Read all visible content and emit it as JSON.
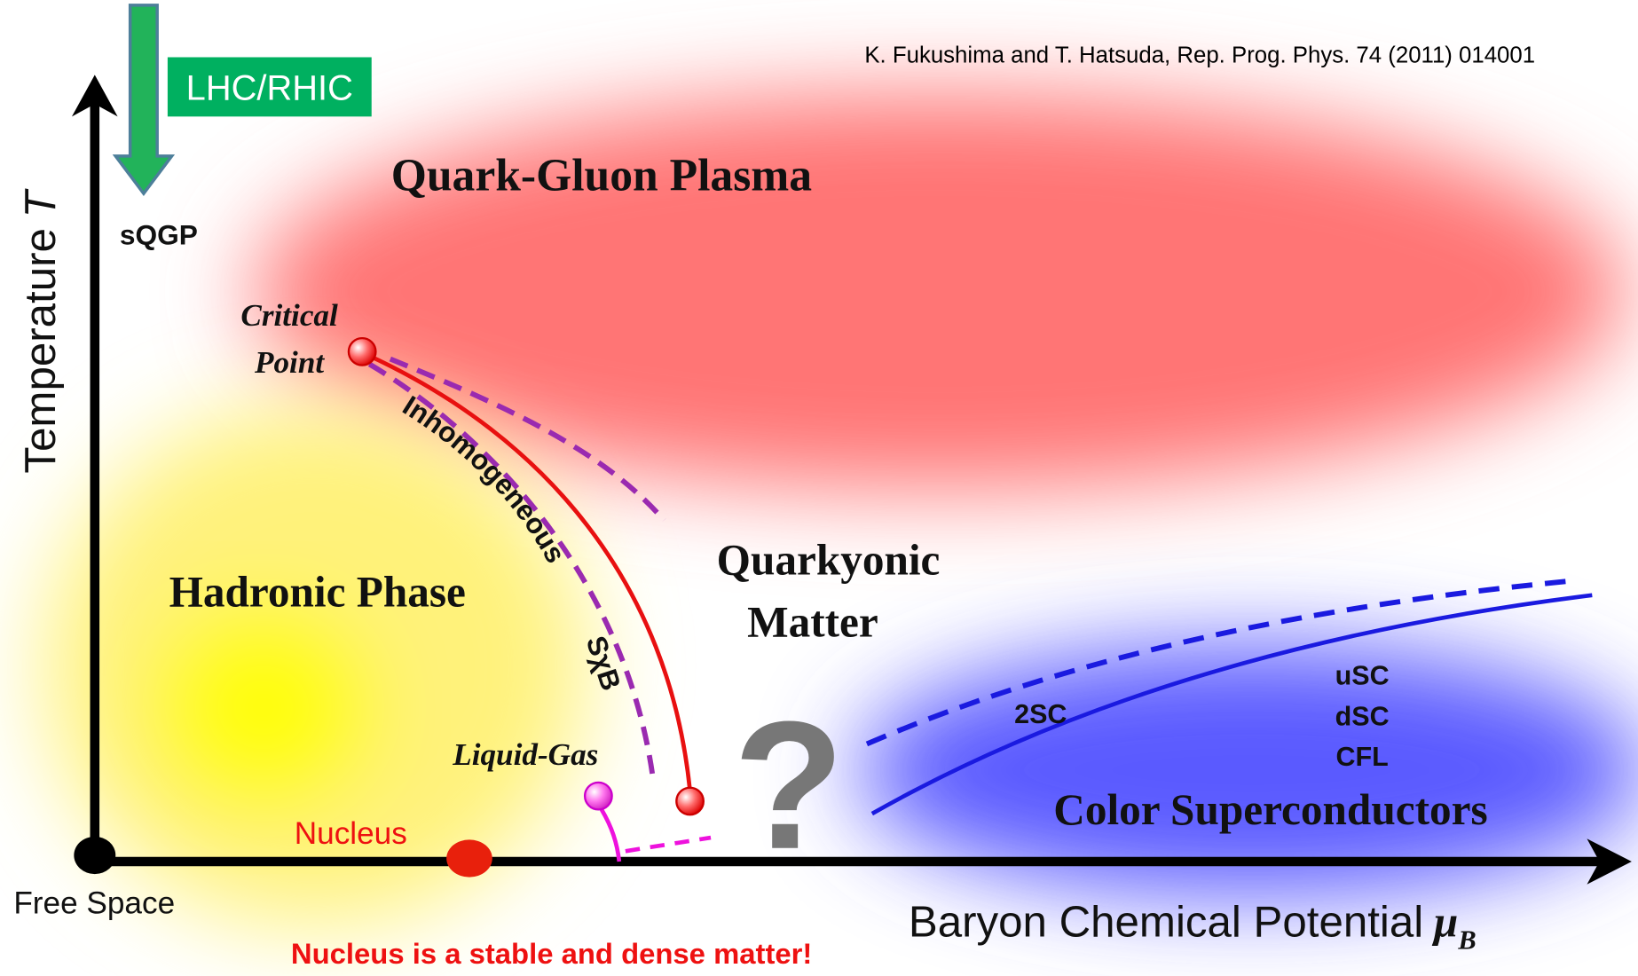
{
  "citation": "K. Fukushima and T. Hatsuda, Rep. Prog. Phys. 74 (2011) 014001",
  "arrow_label": "LHC/RHIC",
  "axes": {
    "y_label": "Temperature",
    "y_symbol": "T",
    "x_label": "Baryon Chemical Potential",
    "x_symbol": "μ",
    "x_subscript": "B"
  },
  "regions": {
    "qgp": "Quark-Gluon Plasma",
    "sqgp": "sQGP",
    "hadronic": "Hadronic Phase",
    "quarkyonic": [
      "Quarkyonic",
      "Matter"
    ],
    "csc": "Color Superconductors"
  },
  "labels": {
    "critical_point": [
      "Critical",
      "Point"
    ],
    "inhomogeneous": "Inhomogeneous",
    "sxb": "SχB",
    "liquid_gas": "Liquid-Gas",
    "nucleus": "Nucleus",
    "two_sc": "2SC",
    "csc_phases": [
      "uSC",
      "dSC",
      "CFL"
    ],
    "question": "?",
    "free_space": "Free Space"
  },
  "note": "Nucleus is a stable and dense matter!"
}
